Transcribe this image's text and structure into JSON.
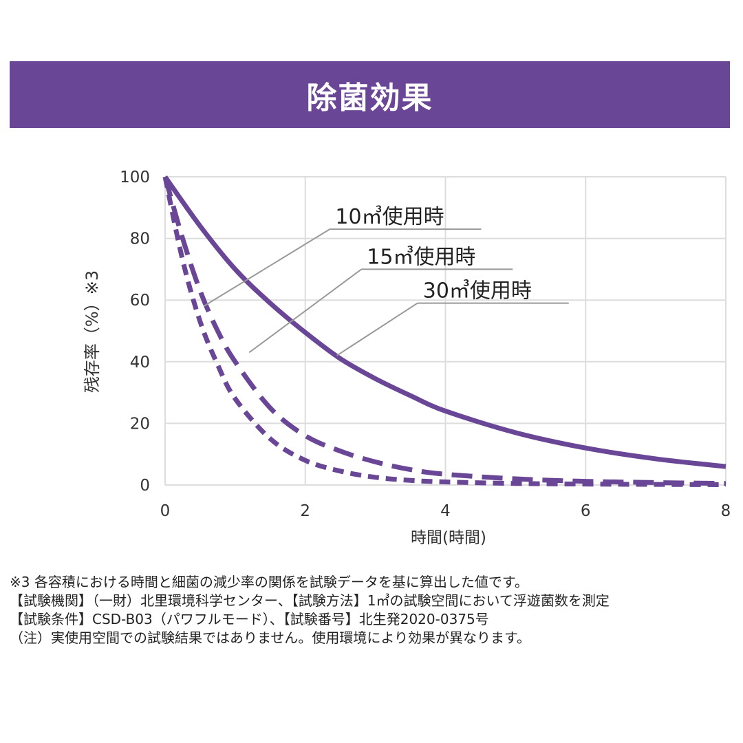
{
  "banner": {
    "title": "除菌効果",
    "color": "#6a4696"
  },
  "chart_data": {
    "type": "line",
    "title": "除菌効果",
    "xlabel": "時間(時間)",
    "ylabel": "残存率（%）※3",
    "xlim": [
      0,
      8
    ],
    "ylim": [
      0,
      100
    ],
    "xticks": [
      "0",
      "2",
      "4",
      "6",
      "8"
    ],
    "yticks": [
      "0",
      "20",
      "40",
      "60",
      "80",
      "100"
    ],
    "grid": true,
    "series": [
      {
        "name": "10㎥使用時",
        "style": "dashed-short",
        "x": [
          0,
          0.25,
          0.5,
          0.75,
          1,
          1.5,
          2,
          2.5,
          3,
          3.5,
          4,
          5,
          6,
          7,
          8
        ],
        "y": [
          100,
          73,
          53,
          39,
          28,
          15,
          8,
          4.5,
          2.5,
          1.5,
          1,
          0.5,
          0.3,
          0.2,
          0.1
        ]
      },
      {
        "name": "15㎥使用時",
        "style": "dashed-long",
        "x": [
          0,
          0.25,
          0.5,
          0.75,
          1,
          1.5,
          2,
          2.5,
          3,
          3.5,
          4,
          5,
          6,
          7,
          8
        ],
        "y": [
          100,
          80,
          63,
          50,
          40,
          25,
          16,
          11,
          7.5,
          5,
          3.5,
          2,
          1.2,
          0.8,
          0.5
        ]
      },
      {
        "name": "30㎥使用時",
        "style": "solid",
        "x": [
          0,
          0.5,
          1,
          1.5,
          2,
          2.5,
          3,
          3.5,
          4,
          5,
          6,
          7,
          8
        ],
        "y": [
          100,
          84,
          70,
          59,
          49.5,
          41,
          34.5,
          29,
          24,
          17,
          12,
          8.5,
          6
        ]
      }
    ],
    "annotations": [
      {
        "text": "10㎥使用時",
        "series": "10㎥使用時",
        "point": [
          0.55,
          58
        ],
        "label_at": [
          2.35,
          83
        ]
      },
      {
        "text": "15㎥使用時",
        "series": "15㎥使用時",
        "point": [
          1.2,
          43
        ],
        "label_at": [
          2.8,
          70
        ]
      },
      {
        "text": "30㎥使用時",
        "series": "30㎥使用時",
        "point": [
          2.45,
          42
        ],
        "label_at": [
          3.6,
          59
        ]
      }
    ],
    "colors": {
      "line": "#6a4696",
      "grid": "#dddddd",
      "leader": "#999999",
      "axis_text": "#333333"
    }
  },
  "notes": [
    "※3 各容積における時間と細菌の減少率の関係を試験データを基に算出した値です。",
    "【試験機関】（一財）北里環境科学センター、【試験方法】1㎥の試験空間において浮遊菌数を測定",
    "【試験条件】CSD-B03（パワフルモード）、【試験番号】北生発2020-0375号",
    "（注）実使用空間での試験結果ではありません。使用環境により効果が異なります。"
  ]
}
